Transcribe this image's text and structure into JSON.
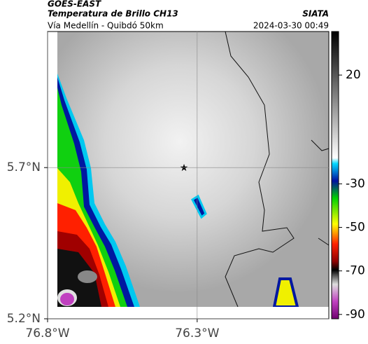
{
  "header": {
    "source": "GOES-EAST",
    "product": "Temperatura de Brillo CH13",
    "agency": "SIATA",
    "route": "Vía Medellín - Quibdó 50km",
    "timestamp": "2024-03-30 00:49"
  },
  "map": {
    "xlim": [
      -76.8,
      -75.86
    ],
    "ylim": [
      5.2,
      6.15
    ],
    "xticks": [
      {
        "value": -76.8,
        "label": "76.8°W"
      },
      {
        "value": -76.3,
        "label": "76.3°W"
      }
    ],
    "yticks": [
      {
        "value": 5.7,
        "label": "5.7°N"
      },
      {
        "value": 5.2,
        "label": "5.2°N"
      }
    ]
  },
  "colorbar": {
    "lim": [
      -92,
      40
    ],
    "ticks": [
      20,
      -30,
      -50,
      -70,
      -90
    ]
  }
}
